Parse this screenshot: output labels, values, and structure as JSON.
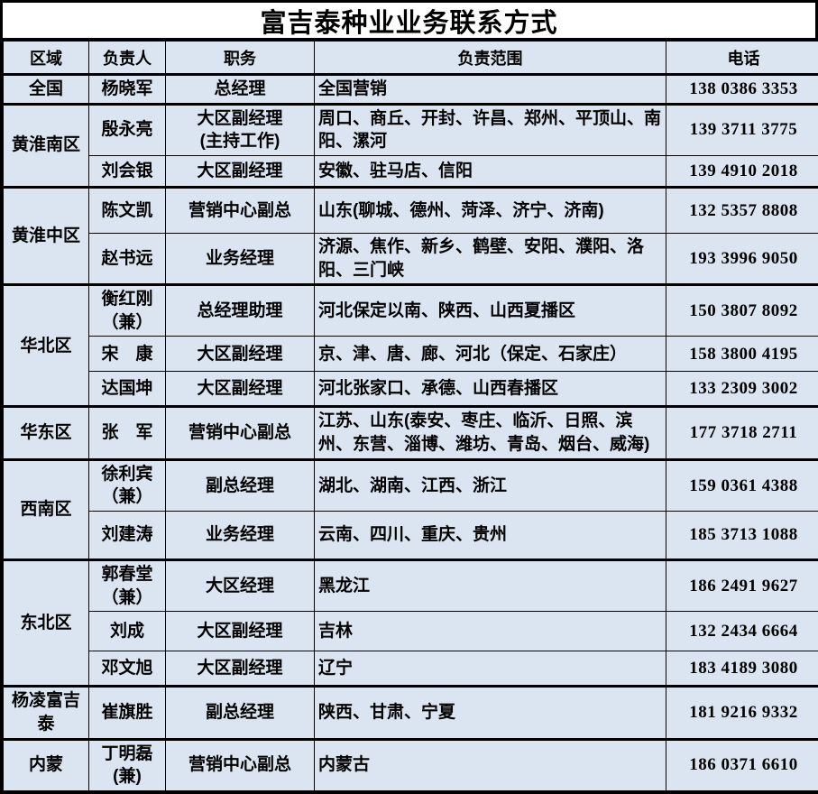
{
  "title": "富吉泰种业业务联系方式",
  "columns": [
    "区域",
    "负责人",
    "职务",
    "负责范围",
    "电话"
  ],
  "colors": {
    "cell_background": "#dbe5f1",
    "border": "#000000",
    "title_background": "#ffffff",
    "text": "#000000"
  },
  "regions": [
    {
      "name": "全国",
      "rows": [
        {
          "person": "杨晓军",
          "position": "总经理",
          "scope": "全国营销",
          "phone": "138 0386 3353"
        }
      ]
    },
    {
      "name": "黄淮南区",
      "rows": [
        {
          "person": "殷永亮",
          "position": "大区副经理\n(主持工作)",
          "scope": "周口、商丘、开封、许昌、郑州、平顶山、南阳、漯河",
          "phone": "139 3711 3775"
        },
        {
          "person": "刘会银",
          "position": "大区副经理",
          "scope": "安徽、驻马店、信阳",
          "phone": "139 4910 2018"
        }
      ]
    },
    {
      "name": "黄淮中区",
      "rows": [
        {
          "person": "陈文凯",
          "position": "营销中心副总",
          "scope": "山东(聊城、德州、菏泽、济宁、济南)",
          "phone": "132 5357 8808"
        },
        {
          "person": "赵书远",
          "position": "业务经理",
          "scope": "济源、焦作、新乡、鹤壁、安阳、濮阳、洛阳、三门峡",
          "phone": "193 3996 9050"
        }
      ]
    },
    {
      "name": "华北区",
      "rows": [
        {
          "person": "衡红刚\n（兼）",
          "position": "总经理助理",
          "scope": "河北保定以南、陕西、山西夏播区",
          "phone": "150 3807 8092"
        },
        {
          "person": "宋　康",
          "position": "大区副经理",
          "scope": "京、津、唐、廊、河北（保定、石家庄）",
          "phone": "158 3800 4195"
        },
        {
          "person": "达国坤",
          "position": "大区副经理",
          "scope": "河北张家口、承德、山西春播区",
          "phone": "133 2309 3002"
        }
      ]
    },
    {
      "name": "华东区",
      "rows": [
        {
          "person": "张　军",
          "position": "营销中心副总",
          "scope": "江苏、山东(泰安、枣庄、临沂、日照、滨州、东营、淄博、潍坊、青岛、烟台、威海)",
          "phone": "177 3718 2711"
        }
      ]
    },
    {
      "name": "西南区",
      "rows": [
        {
          "person": "徐利宾\n（兼）",
          "position": "副总经理",
          "scope": "湖北、湖南、江西、浙江",
          "phone": "159 0361 4388"
        },
        {
          "person": "刘建涛",
          "position": "业务经理",
          "scope": "云南、四川、重庆、贵州",
          "phone": "185 3713 1088"
        }
      ]
    },
    {
      "name": "东北区",
      "rows": [
        {
          "person": "郭春堂\n（兼）",
          "position": "大区经理",
          "scope": "黑龙江",
          "phone": "186 2491 9627"
        },
        {
          "person": "刘成",
          "position": "大区副经理",
          "scope": "吉林",
          "phone": "132 2434 6664"
        },
        {
          "person": "邓文旭",
          "position": "大区副经理",
          "scope": "辽宁",
          "phone": "183 4189 3080"
        }
      ]
    },
    {
      "name": "杨凌富吉泰",
      "rows": [
        {
          "person": "崔旗胜",
          "position": "副总经理",
          "scope": "陕西、甘肃、宁夏",
          "phone": "181 9216 9332"
        }
      ]
    },
    {
      "name": "内蒙",
      "rows": [
        {
          "person": "丁明磊\n(兼)",
          "position": "营销中心副总",
          "scope": "内蒙古",
          "phone": "186 0371 6610"
        }
      ]
    }
  ]
}
